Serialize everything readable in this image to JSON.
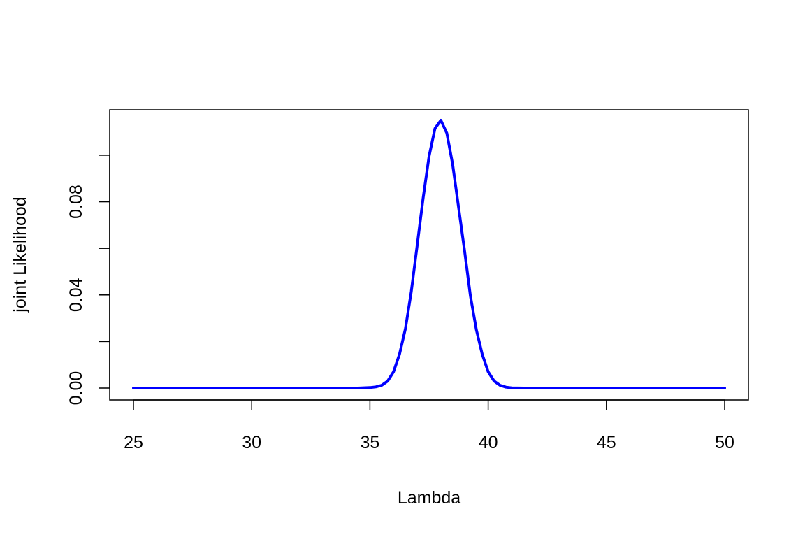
{
  "chart_data": {
    "type": "line",
    "title": "",
    "xlabel": "Lambda",
    "ylabel": "joint Likelihood",
    "xlim": [
      25,
      50
    ],
    "ylim": [
      0,
      0.115
    ],
    "x_ticks": [
      25,
      30,
      35,
      40,
      45,
      50
    ],
    "x_tick_labels": [
      "25",
      "30",
      "35",
      "40",
      "45",
      "50"
    ],
    "y_ticks": [
      0,
      0.02,
      0.04,
      0.06,
      0.08,
      0.1
    ],
    "y_tick_labels": [
      "0.00",
      "",
      "0.04",
      "",
      "0.08",
      ""
    ],
    "grid": false,
    "series": [
      {
        "color": "#0000ff",
        "x": [
          25,
          34.5,
          35,
          35.25,
          35.5,
          35.75,
          36,
          36.25,
          36.5,
          36.75,
          37,
          37.25,
          37.5,
          37.75,
          38,
          38.25,
          38.5,
          38.75,
          39,
          39.25,
          39.5,
          39.75,
          40,
          40.25,
          40.5,
          40.75,
          41,
          41.5,
          50
        ],
        "y": [
          0,
          0,
          0.0002,
          0.0005,
          0.0012,
          0.003,
          0.007,
          0.0145,
          0.0255,
          0.0415,
          0.0615,
          0.0815,
          0.0995,
          0.1115,
          0.115,
          0.1095,
          0.096,
          0.0775,
          0.059,
          0.0395,
          0.025,
          0.0145,
          0.007,
          0.003,
          0.0012,
          0.0004,
          0.0001,
          0,
          0
        ]
      }
    ]
  }
}
